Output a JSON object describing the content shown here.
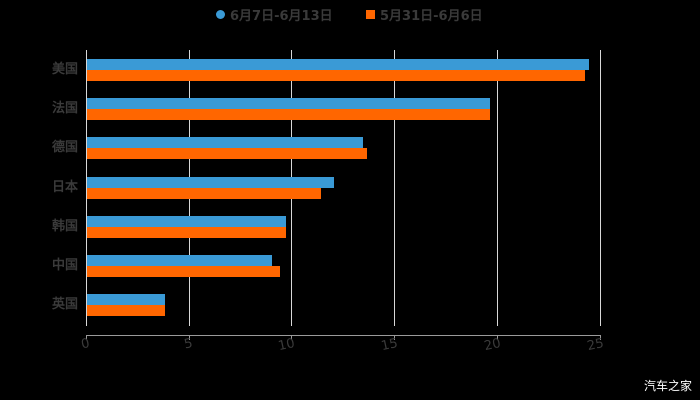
{
  "chart_data": {
    "type": "bar",
    "orientation": "horizontal",
    "title": "",
    "categories": [
      "美国",
      "法国",
      "德国",
      "日本",
      "韩国",
      "中国",
      "英国"
    ],
    "series": [
      {
        "name": "6月7日-6月13日",
        "color": "#3a9ad6",
        "marker": "circle",
        "values": [
          24.4,
          19.6,
          13.4,
          12.0,
          9.7,
          9.0,
          3.8
        ]
      },
      {
        "name": "5月31日-6月6日",
        "color": "#ff6600",
        "marker": "square",
        "values": [
          24.2,
          19.6,
          13.6,
          11.4,
          9.7,
          9.4,
          3.8
        ]
      }
    ],
    "xlabel": "",
    "ylabel": "",
    "xlim": [
      0,
      25
    ],
    "xticks": [
      "0",
      "5",
      "10",
      "15",
      "20",
      "25"
    ],
    "grid": "vertical",
    "legend_position": "top"
  },
  "legend": {
    "items": [
      {
        "label": "6月7日-6月13日",
        "color": "#3a9ad6"
      },
      {
        "label": "5月31日-6月6日",
        "color": "#ff6600"
      }
    ]
  },
  "axis": {
    "ticks": [
      "0",
      "5",
      "10",
      "15",
      "20",
      "25"
    ]
  },
  "categories": [
    "美国",
    "法国",
    "德国",
    "日本",
    "韩国",
    "中国",
    "英国"
  ],
  "watermark": "汽车之家"
}
